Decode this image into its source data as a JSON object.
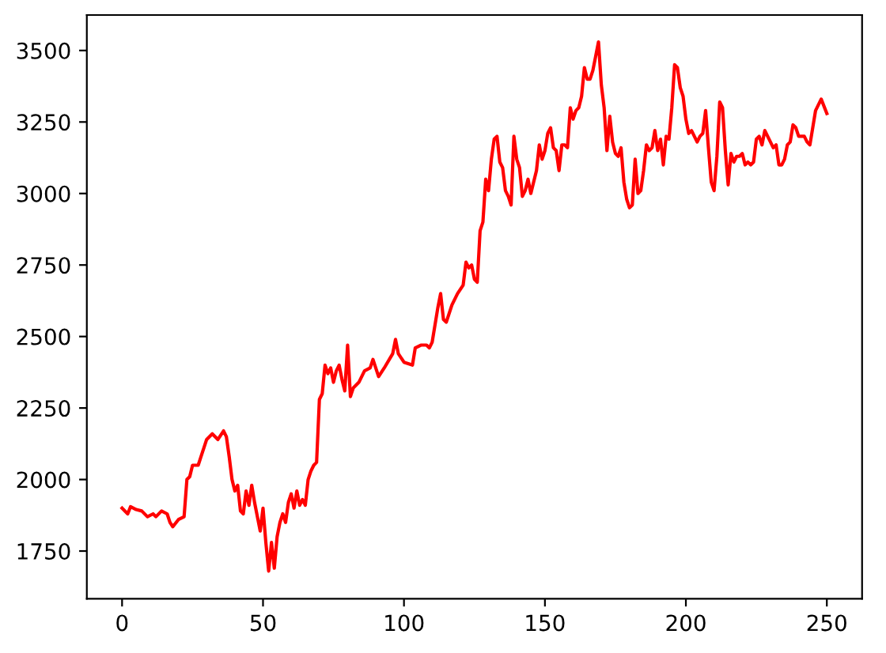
{
  "chart_data": {
    "type": "line",
    "xlim": [
      -12.5,
      262.5
    ],
    "ylim": [
      1583,
      3624
    ],
    "xticks": [
      0,
      50,
      100,
      150,
      200,
      250
    ],
    "yticks": [
      1750,
      2000,
      2250,
      2500,
      2750,
      3000,
      3250,
      3500
    ],
    "grid": false,
    "line_style": "solid",
    "series": [
      {
        "color": "#ff0000",
        "x": [
          0,
          2,
          3,
          5,
          7,
          9,
          11,
          12,
          14,
          16,
          17,
          18,
          20,
          22,
          23,
          24,
          25,
          27,
          28,
          30,
          32,
          34,
          36,
          37,
          38,
          39,
          40,
          41,
          42,
          43,
          44,
          45,
          46,
          47,
          48,
          49,
          50,
          51,
          52,
          53,
          54,
          55,
          56,
          57,
          58,
          59,
          60,
          61,
          62,
          63,
          64,
          65,
          66,
          67,
          68,
          69,
          70,
          71,
          72,
          73,
          74,
          75,
          76,
          77,
          78,
          79,
          80,
          81,
          82,
          84,
          86,
          88,
          89,
          91,
          93,
          96,
          97,
          98,
          100,
          103,
          104,
          106,
          108,
          109,
          110,
          112,
          113,
          114,
          115,
          117,
          119,
          121,
          122,
          123,
          124,
          125,
          126,
          127,
          128,
          129,
          130,
          131,
          132,
          133,
          134,
          135,
          136,
          137,
          138,
          139,
          140,
          141,
          142,
          143,
          144,
          145,
          146,
          147,
          148,
          149,
          150,
          151,
          152,
          153,
          154,
          155,
          156,
          157,
          158,
          159,
          160,
          161,
          162,
          163,
          164,
          165,
          166,
          167,
          168,
          169,
          170,
          171,
          172,
          173,
          174,
          175,
          176,
          177,
          178,
          179,
          180,
          181,
          182,
          183,
          184,
          185,
          186,
          187,
          188,
          189,
          190,
          191,
          192,
          193,
          194,
          195,
          196,
          197,
          198,
          199,
          200,
          201,
          202,
          203,
          204,
          205,
          206,
          207,
          208,
          209,
          210,
          211,
          212,
          213,
          214,
          215,
          216,
          217,
          218,
          219,
          220,
          221,
          222,
          223,
          224,
          225,
          226,
          227,
          228,
          229,
          230,
          231,
          232,
          233,
          234,
          235,
          236,
          237,
          238,
          239,
          240,
          241,
          242,
          243,
          244,
          246,
          248,
          250
        ],
        "values": [
          1900,
          1880,
          1905,
          1895,
          1890,
          1870,
          1880,
          1870,
          1890,
          1880,
          1850,
          1835,
          1860,
          1870,
          2000,
          2010,
          2050,
          2050,
          2080,
          2140,
          2160,
          2140,
          2170,
          2150,
          2080,
          2000,
          1960,
          1980,
          1890,
          1880,
          1960,
          1910,
          1980,
          1920,
          1870,
          1820,
          1900,
          1780,
          1680,
          1780,
          1690,
          1800,
          1850,
          1880,
          1850,
          1920,
          1950,
          1900,
          1960,
          1910,
          1930,
          1910,
          2000,
          2030,
          2050,
          2060,
          2280,
          2300,
          2400,
          2370,
          2390,
          2340,
          2380,
          2400,
          2350,
          2310,
          2470,
          2290,
          2320,
          2340,
          2380,
          2390,
          2420,
          2360,
          2390,
          2440,
          2490,
          2440,
          2410,
          2400,
          2460,
          2470,
          2470,
          2460,
          2480,
          2600,
          2650,
          2560,
          2550,
          2610,
          2650,
          2680,
          2760,
          2740,
          2750,
          2700,
          2690,
          2870,
          2900,
          3050,
          3010,
          3120,
          3190,
          3200,
          3110,
          3090,
          3010,
          2990,
          2960,
          3200,
          3120,
          3090,
          2990,
          3010,
          3050,
          3000,
          3040,
          3080,
          3170,
          3120,
          3150,
          3210,
          3230,
          3160,
          3150,
          3080,
          3170,
          3170,
          3160,
          3300,
          3260,
          3290,
          3300,
          3340,
          3440,
          3400,
          3400,
          3430,
          3480,
          3530,
          3380,
          3300,
          3150,
          3270,
          3180,
          3140,
          3130,
          3160,
          3040,
          2980,
          2950,
          2960,
          3120,
          3000,
          3010,
          3080,
          3170,
          3150,
          3160,
          3220,
          3150,
          3190,
          3100,
          3200,
          3190,
          3300,
          3450,
          3440,
          3370,
          3340,
          3260,
          3210,
          3220,
          3200,
          3180,
          3200,
          3210,
          3290,
          3160,
          3040,
          3010,
          3130,
          3320,
          3300,
          3150,
          3030,
          3140,
          3110,
          3130,
          3130,
          3140,
          3100,
          3110,
          3100,
          3110,
          3190,
          3200,
          3170,
          3220,
          3200,
          3180,
          3160,
          3170,
          3100,
          3100,
          3120,
          3170,
          3180,
          3240,
          3230,
          3200,
          3200,
          3200,
          3180,
          3170,
          3290,
          3330,
          3280
        ]
      }
    ]
  }
}
